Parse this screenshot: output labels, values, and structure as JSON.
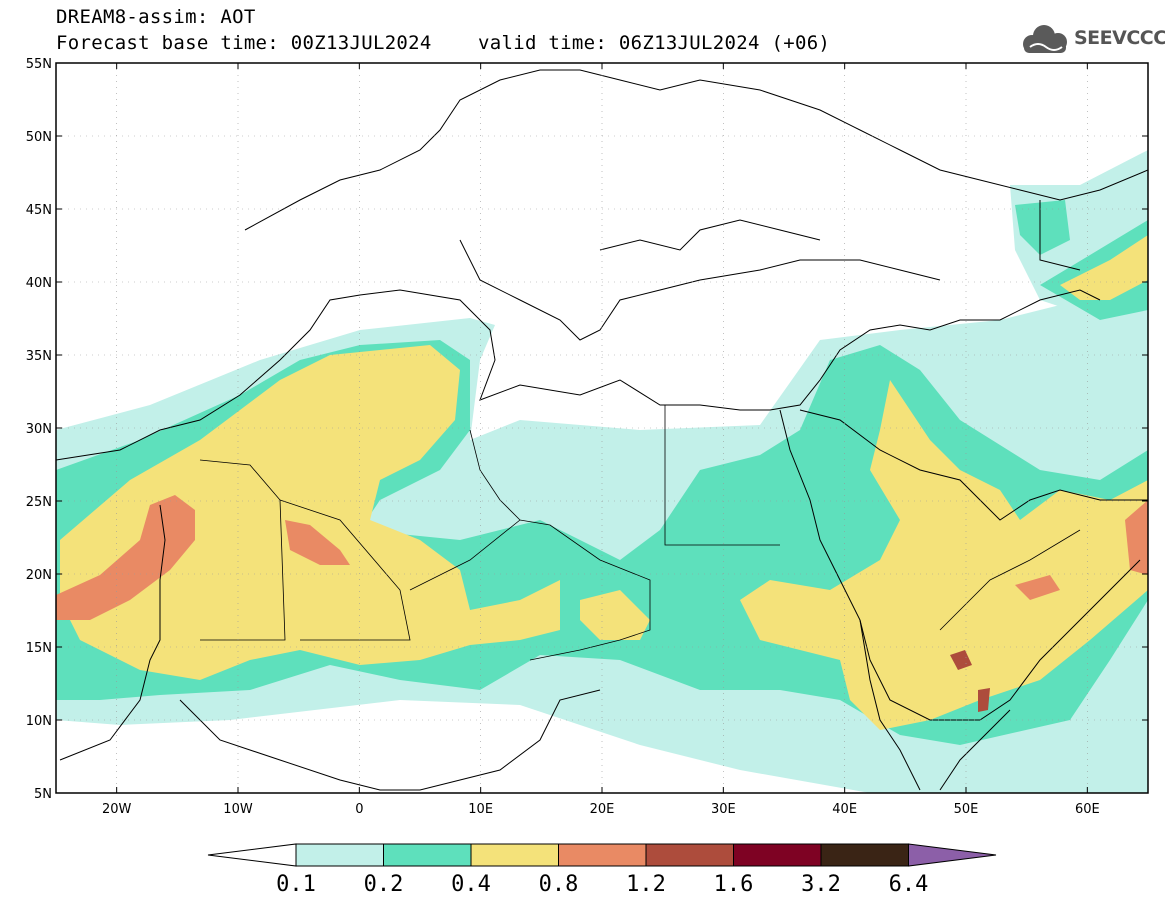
{
  "header": {
    "title": "DREAM8-assim: AOT",
    "forecast_base": "Forecast base time: 00Z13JUL2024",
    "valid_time": "valid time: 06Z13JUL2024 (+06)",
    "logo_text": "SEEVCCC"
  },
  "map": {
    "lat_labels": [
      "55N",
      "50N",
      "45N",
      "40N",
      "35N",
      "30N",
      "25N",
      "20N",
      "15N",
      "10N",
      "5N"
    ],
    "lon_labels": [
      "20W",
      "10W",
      "0",
      "10E",
      "20E",
      "30E",
      "40E",
      "50E",
      "60E"
    ],
    "lon_range": [
      -25,
      65
    ],
    "lat_range": [
      5,
      55
    ]
  },
  "colorbar": {
    "labels": [
      "0.1",
      "0.2",
      "0.4",
      "0.8",
      "1.2",
      "1.6",
      "3.2",
      "6.4"
    ],
    "colors": [
      "#ffffff",
      "#c2f0e9",
      "#5ee0bc",
      "#f4e27a",
      "#e98a64",
      "#ad4c3c",
      "#7e0223",
      "#3a2415",
      "#8c5fa8"
    ]
  }
}
